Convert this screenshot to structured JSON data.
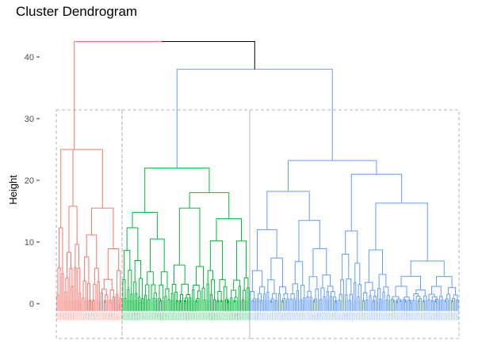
{
  "chart_data": {
    "type": "dendrogram",
    "title": "Cluster Dendrogram",
    "xlabel": "",
    "ylabel": "Height",
    "ylim": [
      -3,
      46
    ],
    "y_ticks": [
      0,
      10,
      20,
      30,
      40
    ],
    "grid": false,
    "legend": "none",
    "root_height": 42.5,
    "clusters": [
      {
        "color": "#F8766D",
        "merge_height": 42.5,
        "subclusters": [
          {
            "size": 0.12,
            "height": 12.3
          },
          {
            "size": 0.88,
            "height": 25.0,
            "subclusters": [
              {
                "size": 0.3,
                "height": 15.8
              },
              {
                "size": 0.7,
                "height": 15.5
              }
            ]
          }
        ]
      },
      {
        "color": "#00BA38",
        "merge_height": 22.0,
        "subclusters": [
          {
            "size": 0.38,
            "height": 14.8,
            "subclusters": [
              {
                "size": 0.45,
                "height": 12.3
              },
              {
                "size": 0.55,
                "height": 10.5
              }
            ]
          },
          {
            "size": 0.62,
            "height": 18.0,
            "subclusters": [
              {
                "size": 0.45,
                "height": 15.5
              },
              {
                "size": 0.55,
                "height": 13.8
              }
            ]
          }
        ]
      },
      {
        "color": "#619CFF",
        "merge_height": 23.2,
        "subclusters": [
          {
            "size": 0.42,
            "height": 18.2,
            "subclusters": [
              {
                "size": 0.45,
                "height": 12.0
              },
              {
                "size": 0.55,
                "height": 13.5
              }
            ]
          },
          {
            "size": 0.58,
            "height": 21.0,
            "subclusters": [
              {
                "size": 0.2,
                "height": 11.8
              },
              {
                "size": 0.8,
                "height": 16.3
              }
            ]
          }
        ]
      }
    ],
    "cluster_merges": [
      {
        "left": 1,
        "right": 2,
        "height": 38.0,
        "color": "#619CFF"
      },
      {
        "left": 0,
        "right": "1+2",
        "height": 42.5,
        "color": "#000000"
      }
    ],
    "cluster_colors": [
      "#F8766D",
      "#00BA38",
      "#619CFF"
    ],
    "leaf_label_color": "#bdbdbd",
    "rect_color": "#b3b3b3",
    "tick_color": "#333333"
  }
}
